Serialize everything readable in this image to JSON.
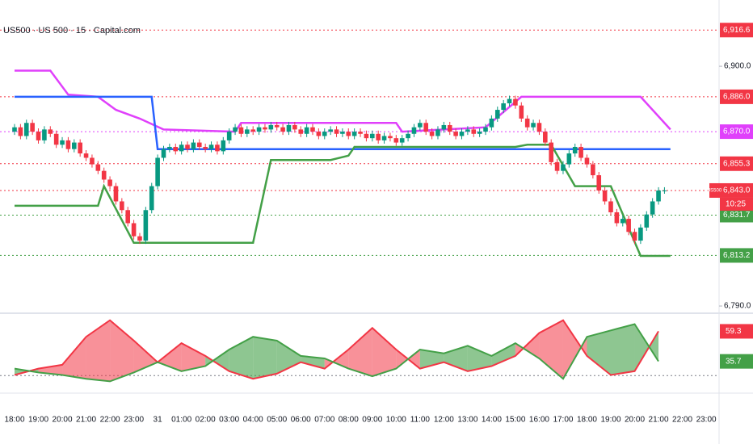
{
  "chart_data": {
    "type": "candlestick",
    "title": "US500 · US 500 · 15 · Capital.com",
    "up_color": "#089981",
    "down_color": "#f23645",
    "ylim": [
      6787.8,
      6930.4
    ],
    "yticks": [
      {
        "value": 6900,
        "label": "6,900.0"
      },
      {
        "value": 6790,
        "label": "6,790.0"
      }
    ],
    "categories": [
      "18:00",
      null,
      null,
      null,
      "19:00",
      null,
      null,
      null,
      "20:00",
      null,
      null,
      null,
      "21:00",
      null,
      null,
      null,
      "22:00",
      null,
      null,
      null,
      "23:00",
      null,
      null,
      null,
      "31",
      null,
      null,
      null,
      "01:00",
      null,
      null,
      null,
      "02:00",
      null,
      null,
      null,
      "03:00",
      null,
      null,
      null,
      "04:00",
      null,
      null,
      null,
      "05:00",
      null,
      null,
      null,
      "06:00",
      null,
      null,
      null,
      "07:00",
      null,
      null,
      null,
      "08:00",
      null,
      null,
      null,
      "09:00",
      null,
      null,
      null,
      "10:00",
      null,
      null,
      null,
      "11:00",
      null,
      null,
      null,
      "12:00",
      null,
      null,
      null,
      "13:00",
      null,
      null,
      null,
      "14:00",
      null,
      null,
      null,
      "15:00",
      null,
      null,
      null,
      "16:00",
      null,
      null,
      null,
      "17:00",
      null,
      null,
      null,
      "18:00",
      null,
      null,
      null,
      "19:00",
      null,
      null,
      null,
      "20:00",
      null,
      null,
      null,
      "21:00",
      null,
      null,
      null,
      "22:00",
      null,
      null,
      null,
      "23:00"
    ],
    "ohlc": [
      [
        6870,
        6873.5,
        6868.5,
        6872
      ],
      [
        6872,
        6873.5,
        6866.5,
        6868
      ],
      [
        6868,
        6875.5,
        6866.5,
        6874
      ],
      [
        6874,
        6875.5,
        6868.5,
        6870
      ],
      [
        6870,
        6871.5,
        6864.5,
        6866
      ],
      [
        6866,
        6872.5,
        6864.5,
        6871
      ],
      [
        6871,
        6872.5,
        6867.5,
        6869
      ],
      [
        6869,
        6870.5,
        6862.5,
        6864
      ],
      [
        6864,
        6867.5,
        6862.5,
        6866
      ],
      [
        6866,
        6867.5,
        6860.5,
        6862
      ],
      [
        6862,
        6866.5,
        6860.5,
        6865
      ],
      [
        6865,
        6866.5,
        6858.5,
        6860
      ],
      [
        6860,
        6861.5,
        6856.5,
        6858
      ],
      [
        6858,
        6859.5,
        6853.5,
        6855
      ],
      [
        6855,
        6856.5,
        6850.5,
        6852
      ],
      [
        6852,
        6853.5,
        6846.5,
        6848
      ],
      [
        6848,
        6849.5,
        6843.5,
        6845
      ],
      [
        6845,
        6846.5,
        6836.5,
        6838
      ],
      [
        6838,
        6839.5,
        6832.5,
        6834
      ],
      [
        6834,
        6835.5,
        6826.5,
        6828
      ],
      [
        6828,
        6829.5,
        6820.5,
        6822
      ],
      [
        6822,
        6823.5,
        6818.5,
        6820
      ],
      [
        6820,
        6835.5,
        6818.5,
        6834
      ],
      [
        6834,
        6846.5,
        6832.5,
        6845
      ],
      [
        6845,
        6859.5,
        6843.5,
        6858
      ],
      [
        6858,
        6863.5,
        6856.5,
        6862
      ],
      [
        6862,
        6864.5,
        6860.5,
        6863
      ],
      [
        6863,
        6864.5,
        6859.5,
        6861
      ],
      [
        6861,
        6865.5,
        6859.5,
        6864
      ],
      [
        6864,
        6865.5,
        6860.5,
        6862
      ],
      [
        6862,
        6866.5,
        6860.5,
        6865
      ],
      [
        6865,
        6866.5,
        6861.5,
        6863
      ],
      [
        6863,
        6864.5,
        6860.5,
        6862
      ],
      [
        6862,
        6865.5,
        6860.5,
        6864
      ],
      [
        6864,
        6865.5,
        6859.5,
        6861
      ],
      [
        6861,
        6867.5,
        6859.5,
        6866
      ],
      [
        6866,
        6871.5,
        6864.5,
        6870
      ],
      [
        6870,
        6873.5,
        6868.5,
        6872
      ],
      [
        6872,
        6873.5,
        6867.5,
        6869
      ],
      [
        6869,
        6872.5,
        6867.5,
        6871
      ],
      [
        6871,
        6872.5,
        6868.5,
        6870
      ],
      [
        6870,
        6873.5,
        6868.5,
        6872
      ],
      [
        6872,
        6873.5,
        6869.5,
        6871
      ],
      [
        6871,
        6874.5,
        6869.5,
        6873
      ],
      [
        6873,
        6874.5,
        6870.5,
        6872
      ],
      [
        6872,
        6873.5,
        6868.5,
        6870
      ],
      [
        6870,
        6874.5,
        6868.5,
        6873
      ],
      [
        6873,
        6874.5,
        6869.5,
        6871
      ],
      [
        6871,
        6872.5,
        6867.5,
        6869
      ],
      [
        6869,
        6873.5,
        6867.5,
        6872
      ],
      [
        6872,
        6873.5,
        6868.5,
        6870
      ],
      [
        6870,
        6871.5,
        6866.5,
        6868
      ],
      [
        6868,
        6871.5,
        6866.5,
        6870
      ],
      [
        6870,
        6872.5,
        6868.5,
        6871
      ],
      [
        6871,
        6872.5,
        6867.5,
        6869
      ],
      [
        6869,
        6871.5,
        6867.5,
        6870
      ],
      [
        6870,
        6871.5,
        6866.5,
        6868
      ],
      [
        6868,
        6871.5,
        6866.5,
        6870
      ],
      [
        6870,
        6871.5,
        6867.5,
        6869
      ],
      [
        6869,
        6870.5,
        6865.5,
        6867
      ],
      [
        6867,
        6870.5,
        6865.5,
        6869
      ],
      [
        6869,
        6870.5,
        6864.5,
        6866
      ],
      [
        6866,
        6869.5,
        6864.5,
        6868
      ],
      [
        6868,
        6869.5,
        6865.5,
        6867
      ],
      [
        6867,
        6868.5,
        6863.5,
        6865
      ],
      [
        6865,
        6868.5,
        6863.5,
        6867
      ],
      [
        6867,
        6870.5,
        6865.5,
        6869
      ],
      [
        6869,
        6873.5,
        6867.5,
        6872
      ],
      [
        6872,
        6875.5,
        6870.5,
        6874
      ],
      [
        6874,
        6875.5,
        6868.5,
        6870
      ],
      [
        6870,
        6871.5,
        6866.5,
        6868
      ],
      [
        6868,
        6872.5,
        6866.5,
        6871
      ],
      [
        6871,
        6874.5,
        6869.5,
        6873
      ],
      [
        6873,
        6874.5,
        6868.5,
        6870
      ],
      [
        6870,
        6871.5,
        6866.5,
        6868
      ],
      [
        6868,
        6871.5,
        6866.5,
        6870
      ],
      [
        6870,
        6872.5,
        6868.5,
        6871
      ],
      [
        6871,
        6872.5,
        6867.5,
        6869
      ],
      [
        6869,
        6871.5,
        6867.5,
        6870
      ],
      [
        6870,
        6873.5,
        6868.5,
        6872
      ],
      [
        6872,
        6877.5,
        6870.5,
        6876
      ],
      [
        6876,
        6881.5,
        6874.5,
        6880
      ],
      [
        6880,
        6884.5,
        6878.5,
        6883
      ],
      [
        6883,
        6886.5,
        6881.5,
        6885
      ],
      [
        6885,
        6886.5,
        6880.5,
        6882
      ],
      [
        6882,
        6883.5,
        6874.5,
        6876
      ],
      [
        6876,
        6877.5,
        6870.5,
        6872
      ],
      [
        6872,
        6875.5,
        6870.5,
        6874
      ],
      [
        6874,
        6875.5,
        6868.5,
        6870
      ],
      [
        6870,
        6871.5,
        6863.5,
        6865
      ],
      [
        6865,
        6866.5,
        6854.5,
        6856
      ],
      [
        6856,
        6857.5,
        6850.5,
        6852
      ],
      [
        6852,
        6856.5,
        6850.5,
        6855
      ],
      [
        6855,
        6861.5,
        6853.5,
        6860
      ],
      [
        6860,
        6864.5,
        6858.5,
        6863
      ],
      [
        6863,
        6864.5,
        6856.5,
        6858
      ],
      [
        6858,
        6859.5,
        6853.5,
        6855
      ],
      [
        6855,
        6856.5,
        6848.5,
        6850
      ],
      [
        6850,
        6851.5,
        6841.5,
        6843
      ],
      [
        6843,
        6844.5,
        6836.5,
        6838
      ],
      [
        6838,
        6839.5,
        6831.5,
        6833
      ],
      [
        6833,
        6834.5,
        6826.5,
        6828
      ],
      [
        6828,
        6831.5,
        6826.5,
        6830
      ],
      [
        6830,
        6831.5,
        6822.5,
        6824
      ],
      [
        6824,
        6825.5,
        6818.5,
        6820
      ],
      [
        6820,
        6827.5,
        6818.5,
        6826
      ],
      [
        6826,
        6833.5,
        6824.5,
        6832
      ],
      [
        6832,
        6839.5,
        6830.5,
        6838
      ],
      [
        6838,
        6844.5,
        6836.5,
        6843
      ],
      [
        6843,
        6844.5,
        6841.5,
        6843
      ],
      null,
      null,
      null,
      null,
      null,
      null,
      null
    ],
    "overlays": [
      {
        "color": "#e040fb",
        "x": [
          0,
          6,
          9,
          14,
          17,
          21,
          25,
          37,
          38,
          64,
          65,
          79,
          85,
          105,
          110
        ],
        "values": [
          6898,
          6898,
          6887,
          6886,
          6880,
          6876,
          6871,
          6870,
          6874,
          6874,
          6870,
          6872,
          6886,
          6886,
          6871
        ]
      },
      {
        "color": "#2962ff",
        "x": [
          0,
          23,
          24,
          110
        ],
        "values": [
          6886,
          6886,
          6862,
          6862
        ]
      },
      {
        "color": "#43a047",
        "x": [
          0,
          14,
          15,
          20,
          40,
          43,
          53,
          56,
          57,
          84,
          86,
          90,
          94,
          100,
          105,
          110
        ],
        "values": [
          6836,
          6836,
          6845,
          6819,
          6819,
          6857,
          6857,
          6859,
          6863,
          6863,
          6864,
          6864,
          6845,
          6845,
          6813,
          6813
        ]
      }
    ],
    "levels": [
      {
        "value": 6916.6,
        "label": "6,916.6",
        "color": "#f23645"
      },
      {
        "value": 6886.0,
        "label": "6,886.0",
        "color": "#f23645"
      },
      {
        "value": 6870.0,
        "label": "6,870.0",
        "color": "#e040fb"
      },
      {
        "value": 6855.3,
        "label": "6,855.3",
        "color": "#f23645"
      },
      {
        "value": 6843.0,
        "label": "6,843.0",
        "color": "#f23645"
      },
      {
        "value": 6831.7,
        "label": "6,831.7",
        "color": "#43a047"
      },
      {
        "value": 6813.2,
        "label": "6,813.2",
        "color": "#43a047"
      }
    ],
    "symbol_tag": "US500",
    "countdown": "10:25",
    "oscillator": {
      "ylim": [
        12,
        71
      ],
      "level": 24.5,
      "x": [
        0,
        4,
        8,
        12,
        16,
        20,
        24,
        28,
        32,
        36,
        40,
        44,
        48,
        52,
        56,
        60,
        64,
        68,
        72,
        76,
        80,
        84,
        88,
        92,
        96,
        100,
        104,
        108
      ],
      "series": [
        {
          "color": "#f23645",
          "values": [
            25,
            30,
            33,
            55,
            68,
            52,
            35,
            50,
            40,
            28,
            22,
            26,
            35,
            30,
            45,
            62,
            45,
            30,
            35,
            28,
            32,
            40,
            58,
            68,
            40,
            25,
            28,
            59.3
          ]
        },
        {
          "color": "#43a047",
          "values": [
            30,
            27,
            25,
            22,
            20,
            27,
            35,
            28,
            32,
            45,
            55,
            52,
            40,
            38,
            30,
            24,
            30,
            45,
            42,
            48,
            40,
            50,
            38,
            22,
            55,
            60,
            65,
            35.7
          ]
        }
      ]
    }
  }
}
